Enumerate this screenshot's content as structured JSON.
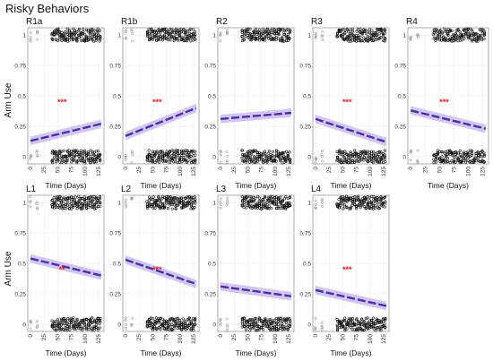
{
  "figure": {
    "title": "Risky Behaviors",
    "y_label": "Arm Use",
    "x_label": "Time (Days)"
  },
  "axes": {
    "y_ticks": [
      0,
      0.25,
      0.5,
      0.75,
      1
    ],
    "y_tick_labels": [
      "0",
      "0.25",
      "0.5",
      "0.75",
      "1"
    ],
    "x_ticks": [
      0,
      25,
      50,
      75,
      100,
      125
    ],
    "x_tick_labels": [
      "0",
      "25",
      "50",
      "75",
      "100",
      "125"
    ],
    "xlim": [
      -5,
      135
    ],
    "ylim": [
      -0.06,
      1.06
    ]
  },
  "colors": {
    "line": "#4b2ea8",
    "ribbon": "#c3b4f0",
    "significance": "#e31a1c",
    "point": "#111111",
    "grid": "#ebebeb",
    "panel_border": "#9a9a9a"
  },
  "chart_data": [
    {
      "type": "scatter",
      "panel": "R1a",
      "title": "R1a",
      "series": [
        {
          "x": [
            0,
            130
          ],
          "y": [
            0.13,
            0.27
          ]
        }
      ],
      "significance": "***"
    },
    {
      "type": "scatter",
      "panel": "R1b",
      "title": "R1b",
      "series": [
        {
          "x": [
            0,
            130
          ],
          "y": [
            0.17,
            0.4
          ]
        }
      ],
      "significance": "***"
    },
    {
      "type": "scatter",
      "panel": "R2",
      "title": "R2",
      "series": [
        {
          "x": [
            0,
            130
          ],
          "y": [
            0.31,
            0.36
          ]
        }
      ],
      "significance": ""
    },
    {
      "type": "scatter",
      "panel": "R3",
      "title": "R3",
      "series": [
        {
          "x": [
            0,
            130
          ],
          "y": [
            0.31,
            0.12
          ]
        }
      ],
      "significance": "***"
    },
    {
      "type": "scatter",
      "panel": "R4",
      "title": "R4",
      "series": [
        {
          "x": [
            0,
            130
          ],
          "y": [
            0.38,
            0.23
          ]
        }
      ],
      "significance": "***"
    },
    {
      "type": "scatter",
      "panel": "L1",
      "title": "L1",
      "series": [
        {
          "x": [
            0,
            130
          ],
          "y": [
            0.54,
            0.4
          ]
        }
      ],
      "significance": "**"
    },
    {
      "type": "scatter",
      "panel": "L2",
      "title": "L2",
      "series": [
        {
          "x": [
            0,
            130
          ],
          "y": [
            0.53,
            0.33
          ]
        }
      ],
      "significance": "***"
    },
    {
      "type": "scatter",
      "panel": "L3",
      "title": "L3",
      "series": [
        {
          "x": [
            0,
            130
          ],
          "y": [
            0.31,
            0.23
          ]
        }
      ],
      "significance": ""
    },
    {
      "type": "scatter",
      "panel": "L4",
      "title": "L4",
      "series": [
        {
          "x": [
            0,
            130
          ],
          "y": [
            0.28,
            0.15
          ]
        }
      ],
      "significance": "***"
    }
  ]
}
